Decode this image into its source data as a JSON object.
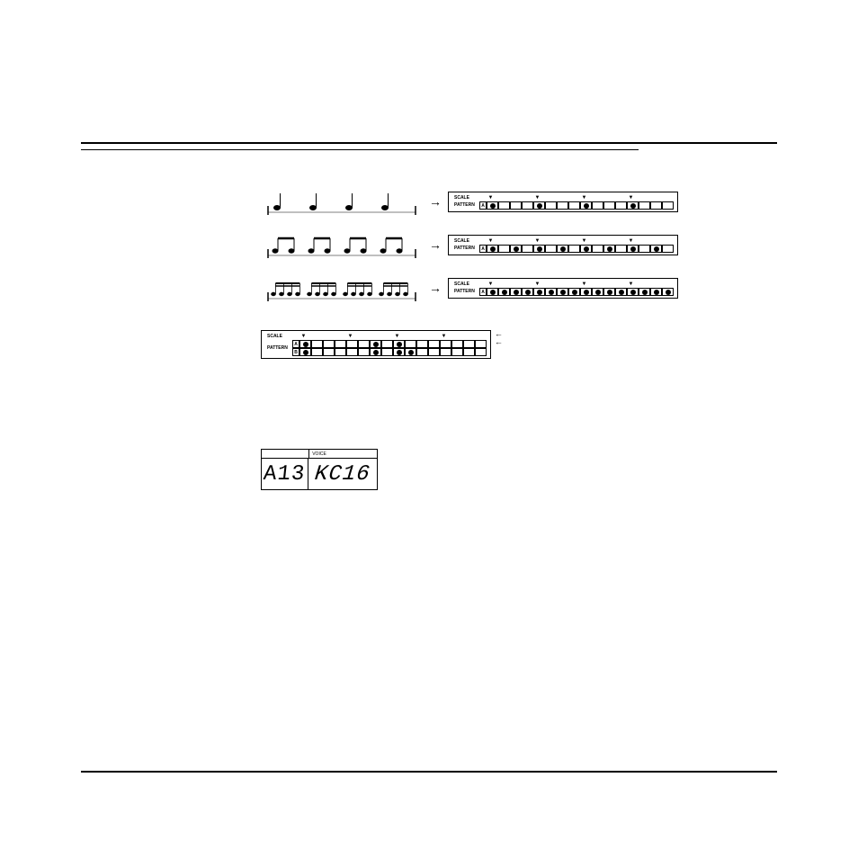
{
  "labels": {
    "scale": "SCALE",
    "pattern": "PATTERN",
    "voice": "VOICE",
    "a": "A",
    "b": "B"
  },
  "rows": [
    {
      "notation": "quarter",
      "ticks": [
        0,
        4,
        8,
        12
      ],
      "dots": [
        0,
        4,
        8,
        12
      ]
    },
    {
      "notation": "eighth",
      "ticks": [
        0,
        4,
        8,
        12
      ],
      "dots": [
        0,
        2,
        4,
        6,
        8,
        10,
        12,
        14
      ]
    },
    {
      "notation": "sixteenth",
      "ticks": [
        0,
        4,
        8,
        12
      ],
      "dots": [
        0,
        1,
        2,
        3,
        4,
        5,
        6,
        7,
        8,
        9,
        10,
        11,
        12,
        13,
        14,
        15
      ]
    }
  ],
  "ab_pattern": {
    "ticks": [
      0,
      4,
      8,
      12
    ],
    "a_dots": [
      0,
      6,
      8
    ],
    "b_dots": [
      0,
      6,
      8,
      9
    ]
  },
  "lcd": {
    "left": "A13",
    "right": "KC16"
  },
  "colors": {
    "fg": "#000000",
    "bg": "#ffffff"
  }
}
